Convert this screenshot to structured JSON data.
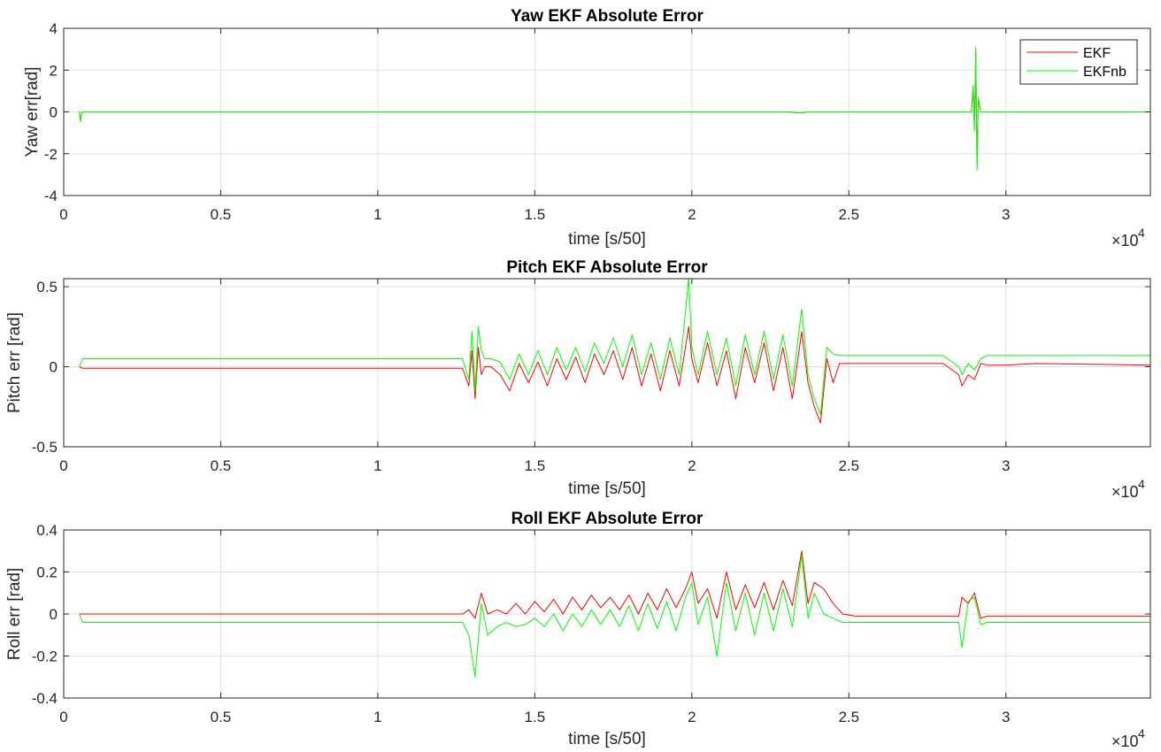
{
  "figure": {
    "background": "#ffffff",
    "grid_color": "#dfdfdf",
    "axis_color": "#262626"
  },
  "legend": {
    "entries": [
      {
        "name": "EKF",
        "color": "#ff0000"
      },
      {
        "name": "EKFnb",
        "color": "#00ff00"
      }
    ]
  },
  "chart_data": [
    {
      "type": "line",
      "title": "Yaw EKF Absolute Error",
      "xlabel": "time [s/50]",
      "ylabel": "Yaw err[rad]",
      "x_exponent_label": "×10",
      "x_exponent_power": "4",
      "xlim": [
        0,
        34600
      ],
      "ylim": [
        -4,
        4
      ],
      "xticks": [
        0,
        5000,
        10000,
        15000,
        20000,
        25000,
        30000
      ],
      "xtick_labels": [
        "0",
        "0.5",
        "1",
        "1.5",
        "2",
        "2.5",
        "3"
      ],
      "yticks": [
        -4,
        -2,
        0,
        2,
        4
      ],
      "ytick_labels": [
        "-4",
        "-2",
        "0",
        "2",
        "4"
      ],
      "grid": true,
      "legend_location": "top-right",
      "series": [
        {
          "name": "EKF",
          "color": "#ff0000",
          "x": [
            500,
            520,
            540,
            560,
            600,
            2000,
            6000,
            10000,
            13000,
            16000,
            20000,
            23000,
            23500,
            23700,
            25000,
            28000,
            28900,
            28960,
            29000,
            29040,
            29080,
            29120,
            29200,
            30000,
            34600
          ],
          "y": [
            0,
            -0.3,
            -0.45,
            -0.1,
            0,
            0,
            0,
            0,
            0,
            0,
            0,
            0,
            -0.05,
            0,
            0,
            0,
            0,
            1.2,
            -0.8,
            2.9,
            -2.6,
            0.6,
            0,
            0,
            0
          ]
        },
        {
          "name": "EKFnb",
          "color": "#00ff00",
          "x": [
            500,
            520,
            540,
            560,
            600,
            2000,
            6000,
            10000,
            13000,
            16000,
            20000,
            23000,
            23500,
            23700,
            25000,
            28000,
            28900,
            28960,
            29000,
            29040,
            29080,
            29120,
            29200,
            30000,
            34600
          ],
          "y": [
            0,
            -0.3,
            -0.45,
            -0.1,
            0,
            0,
            0,
            0,
            0,
            0,
            0,
            0,
            -0.05,
            0,
            0,
            0,
            0,
            1.25,
            -0.9,
            3.1,
            -2.8,
            0.7,
            0,
            0,
            0
          ]
        }
      ]
    },
    {
      "type": "line",
      "title": "Pitch EKF Absolute Error",
      "xlabel": "time [s/50]",
      "ylabel": "Pitch err [rad]",
      "x_exponent_label": "×10",
      "x_exponent_power": "4",
      "xlim": [
        0,
        34600
      ],
      "ylim": [
        -0.5,
        0.55
      ],
      "xticks": [
        0,
        5000,
        10000,
        15000,
        20000,
        25000,
        30000
      ],
      "xtick_labels": [
        "0",
        "0.5",
        "1",
        "1.5",
        "2",
        "2.5",
        "3"
      ],
      "yticks": [
        -0.5,
        0,
        0.5
      ],
      "ytick_labels": [
        "-0.5",
        "0",
        "0.5"
      ],
      "grid": true,
      "series": [
        {
          "name": "EKF",
          "color": "#ff0000",
          "x": [
            500,
            600,
            5000,
            10000,
            12700,
            12900,
            13000,
            13100,
            13200,
            13300,
            13400,
            13600,
            13900,
            14200,
            14500,
            14800,
            15100,
            15400,
            15700,
            16000,
            16300,
            16600,
            16900,
            17200,
            17500,
            17800,
            18100,
            18400,
            18700,
            19000,
            19300,
            19600,
            19900,
            20000,
            20200,
            20500,
            20800,
            21100,
            21400,
            21700,
            22000,
            22300,
            22600,
            22900,
            23200,
            23500,
            23700,
            23900,
            24100,
            24300,
            24500,
            24700,
            26000,
            28000,
            28500,
            28600,
            28800,
            29000,
            29200,
            29400,
            30000,
            31000,
            34600
          ],
          "y": [
            0,
            -0.01,
            -0.01,
            -0.01,
            -0.01,
            -0.12,
            0.1,
            -0.2,
            0.12,
            -0.05,
            0.0,
            0.0,
            -0.05,
            -0.15,
            0.02,
            -0.1,
            0.03,
            -0.12,
            0.05,
            -0.08,
            0.06,
            -0.1,
            0.08,
            -0.05,
            0.1,
            -0.08,
            0.12,
            -0.12,
            0.08,
            -0.15,
            0.1,
            -0.12,
            0.25,
            0.05,
            -0.1,
            0.15,
            -0.12,
            0.1,
            -0.2,
            0.12,
            -0.1,
            0.15,
            -0.15,
            0.12,
            -0.2,
            0.22,
            -0.1,
            -0.25,
            -0.35,
            0.05,
            -0.1,
            0.02,
            0.02,
            0.02,
            -0.05,
            -0.12,
            -0.05,
            -0.08,
            0.02,
            0.01,
            0.01,
            0.02,
            0.01
          ]
        },
        {
          "name": "EKFnb",
          "color": "#00ff00",
          "x": [
            500,
            600,
            5000,
            10000,
            12700,
            12900,
            13000,
            13100,
            13200,
            13300,
            13400,
            13600,
            13900,
            14200,
            14500,
            14800,
            15100,
            15400,
            15700,
            16000,
            16300,
            16600,
            16900,
            17200,
            17500,
            17800,
            18100,
            18400,
            18700,
            19000,
            19300,
            19600,
            19900,
            20000,
            20200,
            20500,
            20800,
            21100,
            21400,
            21700,
            22000,
            22300,
            22600,
            22900,
            23200,
            23500,
            23700,
            23900,
            24100,
            24300,
            24500,
            24700,
            26000,
            28000,
            28500,
            28600,
            28800,
            29000,
            29200,
            29400,
            30000,
            31000,
            34600
          ],
          "y": [
            0,
            0.05,
            0.05,
            0.05,
            0.05,
            -0.08,
            0.22,
            -0.15,
            0.25,
            0.1,
            0.05,
            0.05,
            0.03,
            -0.08,
            0.08,
            -0.05,
            0.1,
            -0.05,
            0.12,
            -0.02,
            0.12,
            -0.03,
            0.15,
            0.02,
            0.18,
            0.0,
            0.2,
            -0.05,
            0.15,
            -0.08,
            0.18,
            -0.05,
            0.55,
            0.12,
            -0.05,
            0.22,
            -0.05,
            0.18,
            -0.12,
            0.2,
            -0.05,
            0.22,
            -0.08,
            0.2,
            -0.12,
            0.36,
            -0.05,
            -0.2,
            -0.3,
            0.12,
            0.08,
            0.07,
            0.07,
            0.07,
            0.0,
            -0.05,
            0.02,
            -0.02,
            0.05,
            0.07,
            0.07,
            0.07,
            0.07
          ]
        }
      ]
    },
    {
      "type": "line",
      "title": "Roll EKF Absolute Error",
      "xlabel": "time [s/50]",
      "ylabel": "Roll err [rad]",
      "x_exponent_label": "×10",
      "x_exponent_power": "4",
      "xlim": [
        0,
        34600
      ],
      "ylim": [
        -0.4,
        0.4
      ],
      "xticks": [
        0,
        5000,
        10000,
        15000,
        20000,
        25000,
        30000
      ],
      "xtick_labels": [
        "0",
        "0.5",
        "1",
        "1.5",
        "2",
        "2.5",
        "3"
      ],
      "yticks": [
        -0.4,
        -0.2,
        0,
        0.2,
        0.4
      ],
      "ytick_labels": [
        "-0.4",
        "-0.2",
        "0",
        "0.2",
        "0.4"
      ],
      "grid": true,
      "series": [
        {
          "name": "EKF",
          "color": "#ff0000",
          "x": [
            500,
            600,
            5000,
            10000,
            12700,
            12900,
            13100,
            13300,
            13500,
            13800,
            14100,
            14400,
            14700,
            15000,
            15300,
            15600,
            15900,
            16200,
            16500,
            16800,
            17100,
            17400,
            17700,
            18000,
            18300,
            18600,
            18900,
            19200,
            19500,
            19800,
            20000,
            20200,
            20500,
            20800,
            21100,
            21400,
            21700,
            22000,
            22300,
            22600,
            22900,
            23200,
            23500,
            23700,
            23900,
            24200,
            24500,
            24800,
            25200,
            26000,
            28000,
            28500,
            28600,
            28800,
            29000,
            29200,
            29400,
            30000,
            31000,
            34600
          ],
          "y": [
            0,
            0,
            0,
            0,
            0,
            0.02,
            -0.02,
            0.1,
            0.0,
            0.02,
            0.0,
            0.05,
            0.0,
            0.06,
            0.01,
            0.07,
            0.0,
            0.08,
            0.02,
            0.09,
            0.03,
            0.08,
            0.02,
            0.09,
            0.0,
            0.1,
            0.02,
            0.12,
            0.03,
            0.12,
            0.2,
            0.05,
            0.12,
            -0.02,
            0.2,
            0.02,
            0.14,
            0.03,
            0.15,
            0.02,
            0.16,
            0.04,
            0.3,
            0.05,
            0.15,
            0.12,
            0.05,
            0.0,
            -0.01,
            -0.01,
            -0.01,
            -0.01,
            0.08,
            0.05,
            0.1,
            -0.02,
            -0.01,
            -0.01,
            -0.01,
            -0.01
          ]
        },
        {
          "name": "EKFnb",
          "color": "#00ff00",
          "x": [
            500,
            600,
            5000,
            10000,
            12700,
            12900,
            13100,
            13300,
            13500,
            13800,
            14100,
            14400,
            14700,
            15000,
            15300,
            15600,
            15900,
            16200,
            16500,
            16800,
            17100,
            17400,
            17700,
            18000,
            18300,
            18600,
            18900,
            19200,
            19500,
            19800,
            20000,
            20200,
            20500,
            20800,
            21100,
            21400,
            21700,
            22000,
            22300,
            22600,
            22900,
            23200,
            23500,
            23700,
            23900,
            24200,
            24500,
            24800,
            25200,
            26000,
            28000,
            28500,
            28600,
            28800,
            29000,
            29200,
            29400,
            30000,
            31000,
            34600
          ],
          "y": [
            0,
            -0.04,
            -0.04,
            -0.04,
            -0.04,
            -0.1,
            -0.3,
            0.05,
            -0.1,
            -0.06,
            -0.04,
            -0.06,
            -0.05,
            -0.02,
            -0.06,
            0.0,
            -0.08,
            0.0,
            -0.06,
            0.02,
            -0.05,
            0.02,
            -0.06,
            0.04,
            -0.08,
            0.05,
            -0.07,
            0.06,
            -0.08,
            0.08,
            0.15,
            -0.05,
            0.08,
            -0.2,
            0.15,
            -0.08,
            0.1,
            -0.1,
            0.1,
            -0.08,
            0.12,
            -0.06,
            0.28,
            -0.02,
            0.1,
            0.0,
            -0.02,
            -0.04,
            -0.04,
            -0.04,
            -0.04,
            -0.04,
            -0.16,
            0.06,
            0.08,
            -0.05,
            -0.04,
            -0.04,
            -0.04,
            -0.04
          ]
        }
      ]
    }
  ]
}
